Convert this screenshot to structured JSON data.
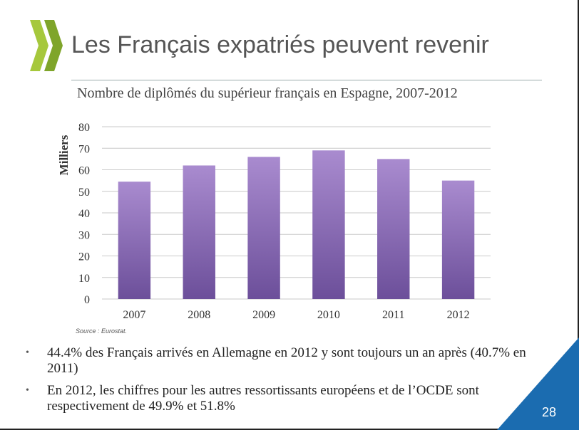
{
  "slide": {
    "title": "Les Français expatriés peuvent revenir",
    "source": "Source : Eurostat.",
    "page_number": "28",
    "bullets": [
      "44.4% des Français arrivés en Allemagne en 2012 y sont toujours un an après (40.7% en 2011)",
      "En 2012, les chiffres pour les autres ressortissants européens et de l’OCDE sont respectivement de 49.9% et 51.8%"
    ],
    "colors": {
      "logo_green": "#a6c83c",
      "corner_blue": "#1b6cb0",
      "bar_top": "#a98bcf",
      "bar_bottom": "#6c4f9a"
    }
  },
  "chart_data": {
    "type": "bar",
    "title": "Nombre de diplômés du supérieur français en Espagne, 2007-2012",
    "xlabel": "",
    "ylabel": "Milliers",
    "categories": [
      "2007",
      "2008",
      "2009",
      "2010",
      "2011",
      "2012"
    ],
    "values": [
      54.5,
      62,
      66,
      69,
      65,
      55
    ],
    "ylim": [
      0,
      80
    ],
    "yticks": [
      0,
      10,
      20,
      30,
      40,
      50,
      60,
      70,
      80
    ],
    "grid": true,
    "legend": "none"
  }
}
